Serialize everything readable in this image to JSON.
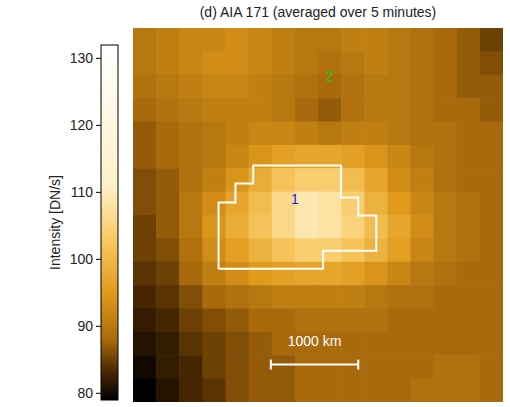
{
  "chart_data": {
    "type": "heatmap",
    "title": "(d) AIA 171 (averaged over 5 minutes)",
    "tick_labels": false,
    "cells": [
      [
        90,
        91,
        92,
        92,
        93,
        92,
        91,
        90,
        90,
        91,
        91,
        90,
        89,
        88,
        87,
        85
      ],
      [
        90,
        91,
        92,
        93,
        93,
        92,
        91,
        90,
        89,
        90,
        91,
        90,
        89,
        88,
        87,
        86
      ],
      [
        89,
        90,
        91,
        92,
        92,
        91,
        90,
        89,
        88,
        89,
        90,
        90,
        89,
        88,
        87,
        87
      ],
      [
        88,
        89,
        90,
        91,
        91,
        91,
        90,
        88,
        87,
        89,
        90,
        90,
        89,
        88,
        88,
        87
      ],
      [
        87,
        88,
        89,
        90,
        91,
        92,
        92,
        91,
        90,
        91,
        91,
        90,
        89,
        89,
        88,
        88
      ],
      [
        87,
        88,
        89,
        90,
        92,
        94,
        96,
        97,
        97,
        96,
        94,
        92,
        90,
        89,
        88,
        88
      ],
      [
        86,
        87,
        89,
        91,
        94,
        98,
        102,
        104,
        104,
        101,
        97,
        93,
        91,
        89,
        88,
        88
      ],
      [
        86,
        87,
        90,
        93,
        97,
        101,
        106,
        109,
        108,
        104,
        99,
        95,
        92,
        90,
        89,
        88
      ],
      [
        85,
        87,
        90,
        94,
        98,
        102,
        106,
        109,
        108,
        105,
        101,
        97,
        93,
        90,
        89,
        88
      ],
      [
        85,
        86,
        89,
        93,
        96,
        99,
        102,
        104,
        104,
        102,
        99,
        96,
        92,
        90,
        89,
        88
      ],
      [
        84,
        85,
        88,
        91,
        93,
        95,
        96,
        97,
        97,
        96,
        94,
        92,
        90,
        89,
        88,
        88
      ],
      [
        83,
        84,
        86,
        88,
        89,
        90,
        91,
        91,
        91,
        91,
        90,
        89,
        89,
        88,
        88,
        88
      ],
      [
        82,
        83,
        85,
        86,
        87,
        88,
        88,
        89,
        89,
        89,
        89,
        88,
        88,
        88,
        88,
        88
      ],
      [
        81,
        82,
        84,
        85,
        86,
        87,
        88,
        88,
        88,
        88,
        88,
        88,
        88,
        88,
        88,
        88
      ],
      [
        80,
        82,
        83,
        85,
        86,
        87,
        87,
        88,
        88,
        88,
        88,
        88,
        88,
        89,
        89,
        88
      ],
      [
        79,
        81,
        83,
        84,
        86,
        87,
        87,
        88,
        88,
        88,
        88,
        88,
        89,
        89,
        89,
        88
      ]
    ],
    "colorbar": {
      "label": "Intensity [DN/s]",
      "range": [
        79,
        132
      ],
      "ticks": [
        80,
        90,
        100,
        110,
        120,
        130
      ]
    },
    "boxes": [
      {
        "label": "1",
        "color": "#1a1ae6",
        "x": 6.3,
        "y": 8.5,
        "size": 0.75
      },
      {
        "label": "2",
        "color": "#10d010",
        "x": 7.8,
        "y": 3.25,
        "size": 0.75
      }
    ],
    "contour": {
      "color": "#ffffff",
      "points": [
        [
          3.7,
          10.3
        ],
        [
          3.7,
          7.47
        ],
        [
          4.43,
          7.47
        ],
        [
          4.43,
          6.65
        ],
        [
          5.2,
          6.65
        ],
        [
          5.2,
          5.88
        ],
        [
          9.0,
          5.88
        ],
        [
          9.0,
          7.25
        ],
        [
          9.74,
          7.25
        ],
        [
          9.74,
          8.02
        ],
        [
          10.52,
          8.02
        ],
        [
          10.52,
          9.53
        ],
        [
          8.22,
          9.53
        ],
        [
          8.22,
          10.3
        ]
      ]
    },
    "scale_bar": {
      "label": "1000 km",
      "x": 5.96,
      "y": 14.4,
      "length": 3.78
    }
  }
}
